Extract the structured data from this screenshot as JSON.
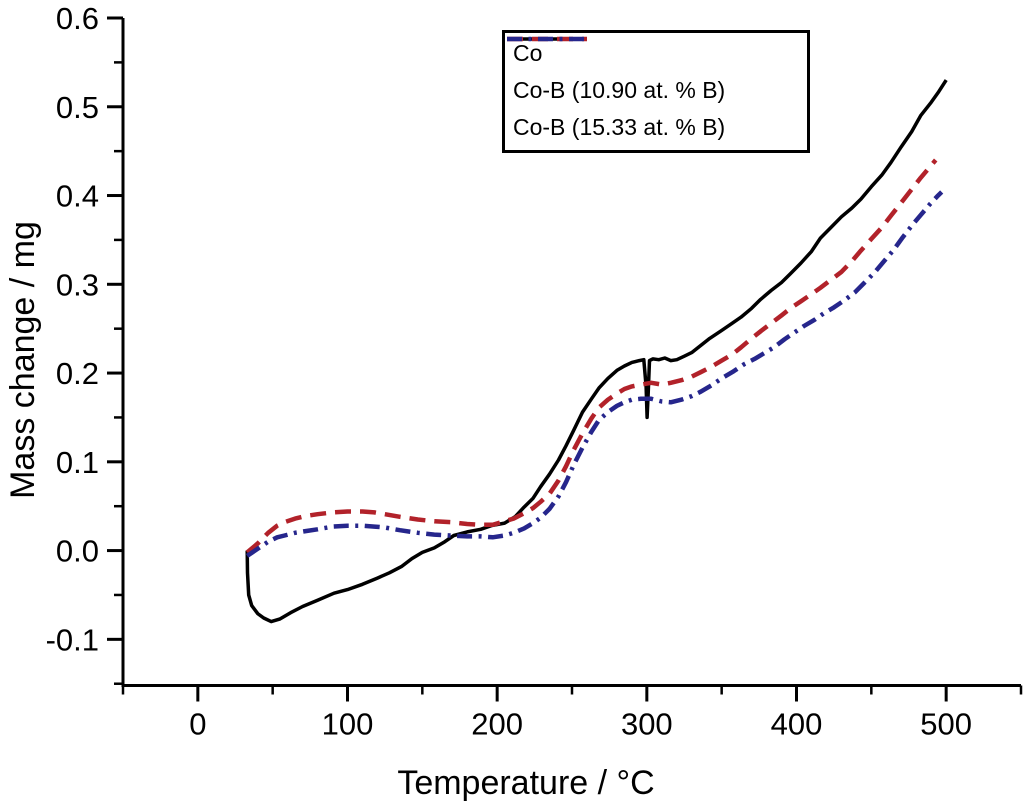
{
  "figure": {
    "background": "#ffffff",
    "axis_color": "#000000"
  },
  "chart_data": {
    "type": "line",
    "title": "",
    "xlabel": "Temperature / °C",
    "ylabel": "Mass change / mg",
    "xlim": [
      -50,
      550
    ],
    "ylim": [
      -0.152,
      0.6
    ],
    "grid": false,
    "legend_position": "top-center",
    "x_major_ticks": [
      0,
      100,
      200,
      300,
      400,
      500
    ],
    "x_tick_labels": [
      "0",
      "100",
      "200",
      "300",
      "400",
      "500"
    ],
    "x_minor_ticks": [
      -50,
      50,
      150,
      250,
      350,
      450,
      550
    ],
    "y_major_ticks": [
      -0.1,
      0.0,
      0.1,
      0.2,
      0.3,
      0.4,
      0.5,
      0.6
    ],
    "y_tick_labels": [
      "-0.1",
      "0.0",
      "0.1",
      "0.2",
      "0.3",
      "0.4",
      "0.5",
      "0.6"
    ],
    "y_minor_ticks": [
      -0.15,
      -0.05,
      0.05,
      0.15,
      0.25,
      0.35,
      0.45,
      0.55
    ],
    "series": [
      {
        "name": "Co",
        "color": "#000000",
        "style": "solid",
        "width": 3.5,
        "points": [
          [
            33,
            0.0
          ],
          [
            33.2,
            -0.025
          ],
          [
            34,
            -0.05
          ],
          [
            36,
            -0.062
          ],
          [
            40,
            -0.071
          ],
          [
            44,
            -0.076
          ],
          [
            49,
            -0.08
          ],
          [
            55,
            -0.077
          ],
          [
            62,
            -0.07
          ],
          [
            70,
            -0.063
          ],
          [
            80,
            -0.056
          ],
          [
            91,
            -0.048
          ],
          [
            100,
            -0.044
          ],
          [
            110,
            -0.038
          ],
          [
            120,
            -0.031
          ],
          [
            128,
            -0.025
          ],
          [
            136,
            -0.018
          ],
          [
            143,
            -0.009
          ],
          [
            150,
            -0.002
          ],
          [
            158,
            0.003
          ],
          [
            165,
            0.01
          ],
          [
            171,
            0.017
          ],
          [
            180,
            0.021
          ],
          [
            189,
            0.024
          ],
          [
            196,
            0.028
          ],
          [
            205,
            0.031
          ],
          [
            212,
            0.038
          ],
          [
            218,
            0.049
          ],
          [
            224,
            0.059
          ],
          [
            229,
            0.072
          ],
          [
            235,
            0.086
          ],
          [
            241,
            0.102
          ],
          [
            246,
            0.118
          ],
          [
            251,
            0.135
          ],
          [
            257,
            0.156
          ],
          [
            263,
            0.171
          ],
          [
            268,
            0.183
          ],
          [
            274,
            0.194
          ],
          [
            280,
            0.203
          ],
          [
            285,
            0.208
          ],
          [
            290,
            0.212
          ],
          [
            295,
            0.214
          ],
          [
            298,
            0.215
          ],
          [
            299.5,
            0.185
          ],
          [
            300.2,
            0.15
          ],
          [
            301,
            0.18
          ],
          [
            301.8,
            0.214
          ],
          [
            304,
            0.216
          ],
          [
            308,
            0.215
          ],
          [
            312,
            0.217
          ],
          [
            316,
            0.214
          ],
          [
            320,
            0.215
          ],
          [
            325,
            0.219
          ],
          [
            330,
            0.223
          ],
          [
            336,
            0.231
          ],
          [
            342,
            0.239
          ],
          [
            350,
            0.248
          ],
          [
            357,
            0.256
          ],
          [
            363,
            0.263
          ],
          [
            370,
            0.273
          ],
          [
            376,
            0.283
          ],
          [
            383,
            0.293
          ],
          [
            390,
            0.302
          ],
          [
            396,
            0.312
          ],
          [
            403,
            0.324
          ],
          [
            410,
            0.337
          ],
          [
            416,
            0.352
          ],
          [
            423,
            0.364
          ],
          [
            430,
            0.376
          ],
          [
            437,
            0.386
          ],
          [
            443,
            0.396
          ],
          [
            450,
            0.41
          ],
          [
            457,
            0.423
          ],
          [
            463,
            0.437
          ],
          [
            470,
            0.455
          ],
          [
            477,
            0.472
          ],
          [
            483,
            0.49
          ],
          [
            490,
            0.505
          ],
          [
            495,
            0.517
          ],
          [
            500,
            0.53
          ]
        ]
      },
      {
        "name": "Co-B (10.90 at. % B)",
        "color": "#b2222a",
        "style": "dashed",
        "width": 4.5,
        "points": [
          [
            33,
            -0.002
          ],
          [
            40,
            0.008
          ],
          [
            47,
            0.02
          ],
          [
            53,
            0.028
          ],
          [
            58,
            0.032
          ],
          [
            65,
            0.036
          ],
          [
            72,
            0.039
          ],
          [
            80,
            0.041
          ],
          [
            90,
            0.043
          ],
          [
            100,
            0.044
          ],
          [
            110,
            0.044
          ],
          [
            118,
            0.043
          ],
          [
            125,
            0.041
          ],
          [
            135,
            0.038
          ],
          [
            147,
            0.035
          ],
          [
            158,
            0.033
          ],
          [
            169,
            0.032
          ],
          [
            180,
            0.03
          ],
          [
            189,
            0.029
          ],
          [
            197,
            0.029
          ],
          [
            205,
            0.033
          ],
          [
            211,
            0.036
          ],
          [
            218,
            0.042
          ],
          [
            224,
            0.048
          ],
          [
            229,
            0.055
          ],
          [
            235,
            0.064
          ],
          [
            241,
            0.079
          ],
          [
            246,
            0.095
          ],
          [
            251,
            0.113
          ],
          [
            257,
            0.132
          ],
          [
            263,
            0.149
          ],
          [
            268,
            0.161
          ],
          [
            274,
            0.17
          ],
          [
            280,
            0.177
          ],
          [
            285,
            0.182
          ],
          [
            290,
            0.185
          ],
          [
            296,
            0.187
          ],
          [
            303,
            0.189
          ],
          [
            310,
            0.187
          ],
          [
            316,
            0.189
          ],
          [
            323,
            0.192
          ],
          [
            330,
            0.196
          ],
          [
            336,
            0.201
          ],
          [
            343,
            0.207
          ],
          [
            350,
            0.214
          ],
          [
            357,
            0.221
          ],
          [
            363,
            0.229
          ],
          [
            370,
            0.239
          ],
          [
            376,
            0.247
          ],
          [
            383,
            0.256
          ],
          [
            390,
            0.265
          ],
          [
            396,
            0.273
          ],
          [
            403,
            0.281
          ],
          [
            410,
            0.289
          ],
          [
            416,
            0.296
          ],
          [
            423,
            0.305
          ],
          [
            430,
            0.314
          ],
          [
            437,
            0.326
          ],
          [
            443,
            0.338
          ],
          [
            450,
            0.351
          ],
          [
            457,
            0.364
          ],
          [
            463,
            0.377
          ],
          [
            470,
            0.392
          ],
          [
            477,
            0.407
          ],
          [
            483,
            0.42
          ],
          [
            488,
            0.43
          ],
          [
            493,
            0.44
          ]
        ]
      },
      {
        "name": "Co-B (15.33 at. % B)",
        "color": "#26268c",
        "style": "dashdot",
        "width": 4.5,
        "points": [
          [
            33,
            -0.006
          ],
          [
            40,
            0.002
          ],
          [
            47,
            0.01
          ],
          [
            53,
            0.015
          ],
          [
            58,
            0.017
          ],
          [
            65,
            0.02
          ],
          [
            72,
            0.022
          ],
          [
            80,
            0.024
          ],
          [
            90,
            0.027
          ],
          [
            100,
            0.028
          ],
          [
            110,
            0.028
          ],
          [
            118,
            0.027
          ],
          [
            125,
            0.026
          ],
          [
            135,
            0.023
          ],
          [
            147,
            0.02
          ],
          [
            158,
            0.018
          ],
          [
            169,
            0.017
          ],
          [
            180,
            0.016
          ],
          [
            189,
            0.016
          ],
          [
            197,
            0.015
          ],
          [
            205,
            0.017
          ],
          [
            211,
            0.02
          ],
          [
            218,
            0.025
          ],
          [
            224,
            0.031
          ],
          [
            229,
            0.037
          ],
          [
            235,
            0.047
          ],
          [
            241,
            0.061
          ],
          [
            246,
            0.077
          ],
          [
            251,
            0.096
          ],
          [
            257,
            0.116
          ],
          [
            263,
            0.134
          ],
          [
            268,
            0.147
          ],
          [
            274,
            0.156
          ],
          [
            280,
            0.163
          ],
          [
            285,
            0.167
          ],
          [
            290,
            0.17
          ],
          [
            296,
            0.171
          ],
          [
            303,
            0.171
          ],
          [
            310,
            0.168
          ],
          [
            316,
            0.167
          ],
          [
            323,
            0.17
          ],
          [
            330,
            0.174
          ],
          [
            336,
            0.179
          ],
          [
            343,
            0.186
          ],
          [
            350,
            0.194
          ],
          [
            358,
            0.202
          ],
          [
            365,
            0.21
          ],
          [
            372,
            0.216
          ],
          [
            378,
            0.222
          ],
          [
            385,
            0.229
          ],
          [
            392,
            0.238
          ],
          [
            398,
            0.245
          ],
          [
            405,
            0.253
          ],
          [
            412,
            0.26
          ],
          [
            418,
            0.267
          ],
          [
            425,
            0.274
          ],
          [
            432,
            0.282
          ],
          [
            439,
            0.291
          ],
          [
            445,
            0.301
          ],
          [
            452,
            0.313
          ],
          [
            458,
            0.325
          ],
          [
            465,
            0.339
          ],
          [
            471,
            0.353
          ],
          [
            477,
            0.366
          ],
          [
            483,
            0.378
          ],
          [
            489,
            0.39
          ],
          [
            494,
            0.399
          ],
          [
            497,
            0.404
          ]
        ]
      }
    ]
  }
}
